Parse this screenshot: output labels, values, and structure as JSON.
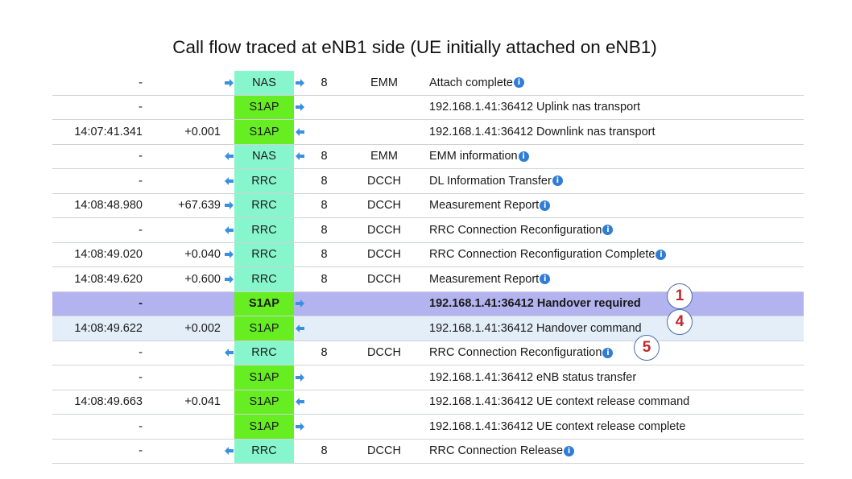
{
  "title": "Call flow traced at eNB1 side (UE initially attached on eNB1)",
  "colors": {
    "s1ap": "#66ee22",
    "nas_rrc": "#88f6cc",
    "selected_row": "#b3b3f0",
    "hover_row": "#e4eef8",
    "badge_text": "#c0272d",
    "arrow": "#3a8fe0"
  },
  "rows": [
    {
      "time": "-",
      "delta": "",
      "dir_in": "right",
      "proto": "NAS",
      "proto_color": "aqua",
      "dir_out": "right",
      "channel": "8",
      "category": "EMM",
      "desc": "Attach complete",
      "info": true
    },
    {
      "time": "-",
      "delta": "",
      "dir_in": "",
      "proto": "S1AP",
      "proto_color": "green",
      "dir_out": "right",
      "channel": "",
      "category": "",
      "desc": "192.168.1.41:36412 Uplink nas transport",
      "info": false
    },
    {
      "time": "14:07:41.341",
      "delta": "+0.001",
      "dir_in": "",
      "proto": "S1AP",
      "proto_color": "green",
      "dir_out": "left",
      "channel": "",
      "category": "",
      "desc": "192.168.1.41:36412 Downlink nas transport",
      "info": false
    },
    {
      "time": "-",
      "delta": "",
      "dir_in": "left",
      "proto": "NAS",
      "proto_color": "aqua",
      "dir_out": "left",
      "channel": "8",
      "category": "EMM",
      "desc": "EMM information",
      "info": true
    },
    {
      "time": "-",
      "delta": "",
      "dir_in": "left",
      "proto": "RRC",
      "proto_color": "aqua",
      "dir_out": "",
      "channel": "8",
      "category": "DCCH",
      "desc": "DL Information Transfer",
      "info": true
    },
    {
      "time": "14:08:48.980",
      "delta": "+67.639",
      "dir_in": "right",
      "proto": "RRC",
      "proto_color": "aqua",
      "dir_out": "",
      "channel": "8",
      "category": "DCCH",
      "desc": "Measurement Report",
      "info": true
    },
    {
      "time": "-",
      "delta": "",
      "dir_in": "left",
      "proto": "RRC",
      "proto_color": "aqua",
      "dir_out": "",
      "channel": "8",
      "category": "DCCH",
      "desc": "RRC Connection Reconfiguration",
      "info": true
    },
    {
      "time": "14:08:49.020",
      "delta": "+0.040",
      "dir_in": "right",
      "proto": "RRC",
      "proto_color": "aqua",
      "dir_out": "",
      "channel": "8",
      "category": "DCCH",
      "desc": "RRC Connection Reconfiguration Complete",
      "info": true
    },
    {
      "time": "14:08:49.620",
      "delta": "+0.600",
      "dir_in": "right",
      "proto": "RRC",
      "proto_color": "aqua",
      "dir_out": "",
      "channel": "8",
      "category": "DCCH",
      "desc": "Measurement Report",
      "info": true
    },
    {
      "time": "-",
      "delta": "",
      "dir_in": "",
      "proto": "S1AP",
      "proto_color": "green",
      "dir_out": "right",
      "channel": "",
      "category": "",
      "desc": "192.168.1.41:36412 Handover required",
      "info": false,
      "state": "selected"
    },
    {
      "time": "14:08:49.622",
      "delta": "+0.002",
      "dir_in": "",
      "proto": "S1AP",
      "proto_color": "green",
      "dir_out": "left",
      "channel": "",
      "category": "",
      "desc": "192.168.1.41:36412 Handover command",
      "info": false,
      "state": "hover"
    },
    {
      "time": "-",
      "delta": "",
      "dir_in": "left",
      "proto": "RRC",
      "proto_color": "aqua",
      "dir_out": "",
      "channel": "8",
      "category": "DCCH",
      "desc": "RRC Connection Reconfiguration",
      "info": true
    },
    {
      "time": "-",
      "delta": "",
      "dir_in": "",
      "proto": "S1AP",
      "proto_color": "green",
      "dir_out": "right",
      "channel": "",
      "category": "",
      "desc": "192.168.1.41:36412 eNB status transfer",
      "info": false
    },
    {
      "time": "14:08:49.663",
      "delta": "+0.041",
      "dir_in": "",
      "proto": "S1AP",
      "proto_color": "green",
      "dir_out": "left",
      "channel": "",
      "category": "",
      "desc": "192.168.1.41:36412 UE context release command",
      "info": false
    },
    {
      "time": "-",
      "delta": "",
      "dir_in": "",
      "proto": "S1AP",
      "proto_color": "green",
      "dir_out": "right",
      "channel": "",
      "category": "",
      "desc": "192.168.1.41:36412 UE context release complete",
      "info": false
    },
    {
      "time": "-",
      "delta": "",
      "dir_in": "left",
      "proto": "RRC",
      "proto_color": "aqua",
      "dir_out": "",
      "channel": "8",
      "category": "DCCH",
      "desc": "RRC Connection Release",
      "info": true
    }
  ],
  "badges": [
    {
      "label": "1",
      "row": 9
    },
    {
      "label": "4",
      "row": 10
    },
    {
      "label": "5",
      "row": 11
    }
  ]
}
